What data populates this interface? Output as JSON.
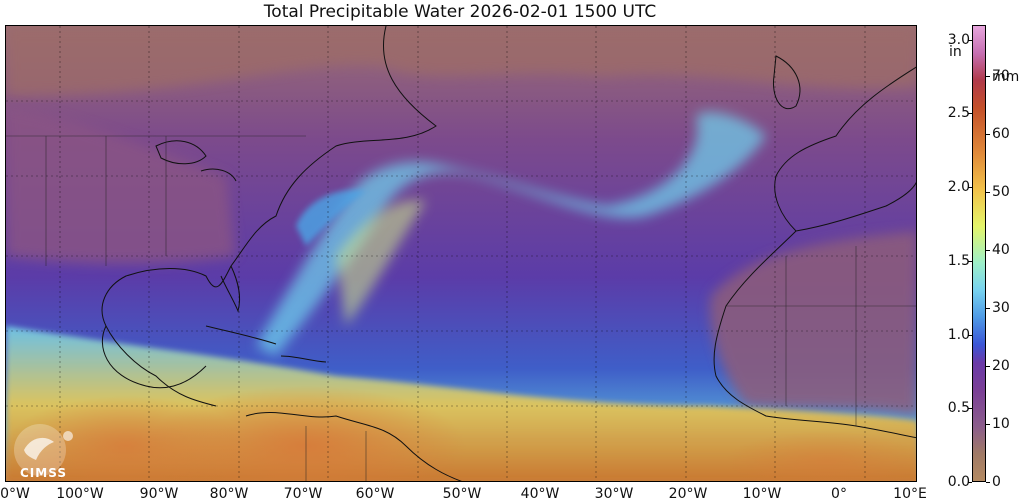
{
  "title": "Total Precipitable Water  2026-02-01 1500 UTC",
  "logo_text": "CIMSS",
  "x_ticks": [
    "0°W",
    "100°W",
    "90°W",
    "80°W",
    "70°W",
    "60°W",
    "50°W",
    "40°W",
    "30°W",
    "20°W",
    "10°W",
    "0°",
    "10°E"
  ],
  "colorbar": {
    "left_unit": "in",
    "left_ticks": [
      "3.0",
      "2.5",
      "2.0",
      "1.5",
      "1.0",
      "0.5",
      "0.0"
    ],
    "right_unit": "mm",
    "right_ticks": [
      "70",
      "60",
      "50",
      "40",
      "30",
      "20",
      "10",
      "0"
    ]
  }
}
